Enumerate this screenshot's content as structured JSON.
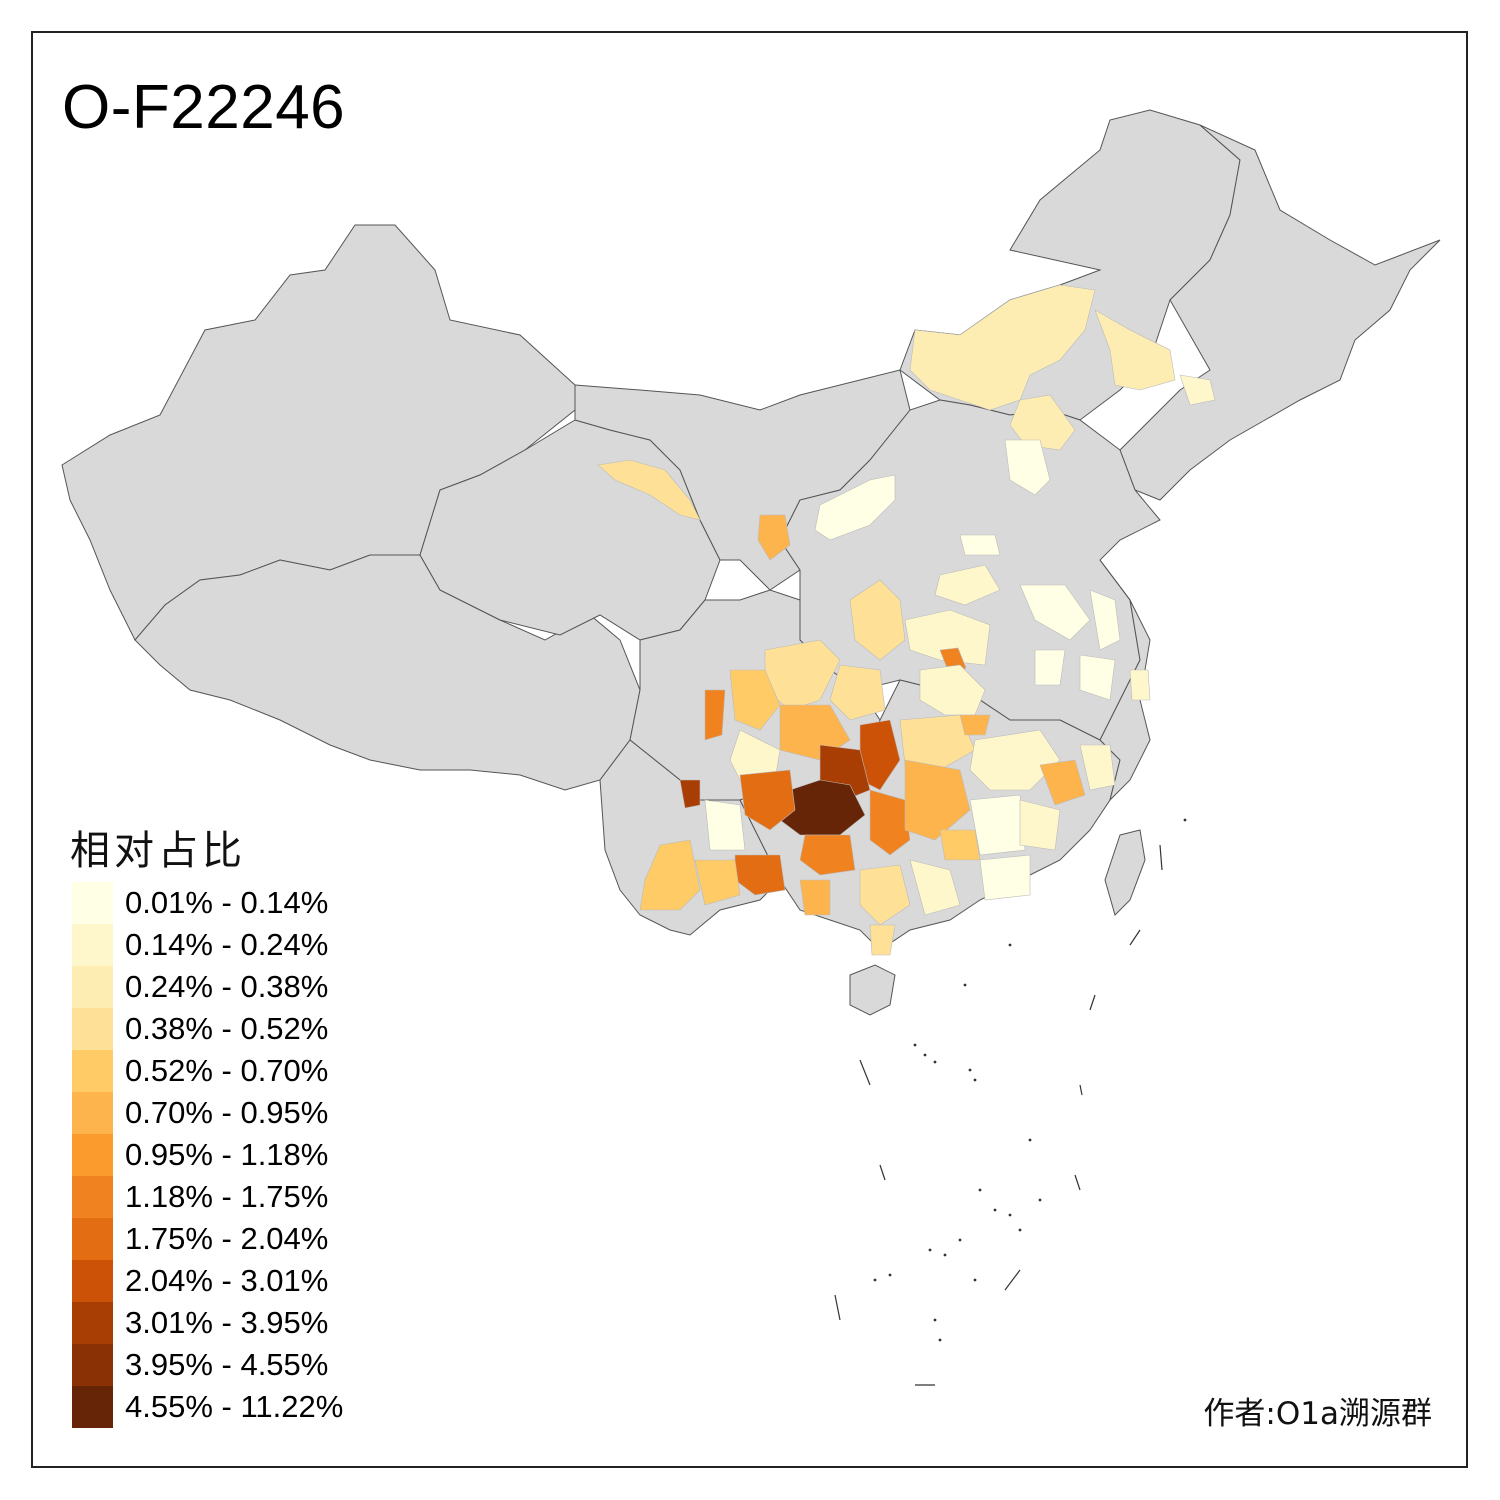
{
  "title": "O-F22246",
  "legend": {
    "title": "相对占比",
    "items": [
      {
        "label": "0.01% - 0.14%",
        "color": "#FFFFE5"
      },
      {
        "label": "0.14% - 0.24%",
        "color": "#FFF7CC"
      },
      {
        "label": "0.24% - 0.38%",
        "color": "#FEEDB2"
      },
      {
        "label": "0.38% - 0.52%",
        "color": "#FEE196"
      },
      {
        "label": "0.52% - 0.70%",
        "color": "#FECB67"
      },
      {
        "label": "0.70% - 0.95%",
        "color": "#FEB44C"
      },
      {
        "label": "0.95% - 1.18%",
        "color": "#FB9A2D"
      },
      {
        "label": "1.18% - 1.75%",
        "color": "#F0821F"
      },
      {
        "label": "1.75% - 2.04%",
        "color": "#E36D13"
      },
      {
        "label": "2.04% - 3.01%",
        "color": "#CC5208"
      },
      {
        "label": "3.01% - 3.95%",
        "color": "#A93E04"
      },
      {
        "label": "3.95% - 4.55%",
        "color": "#8A3205"
      },
      {
        "label": "4.55% - 11.22%",
        "color": "#662506"
      }
    ]
  },
  "author": "作者:O1a溯源群",
  "colors": {
    "background_region": "#D9D9D9",
    "border": "#444444"
  }
}
